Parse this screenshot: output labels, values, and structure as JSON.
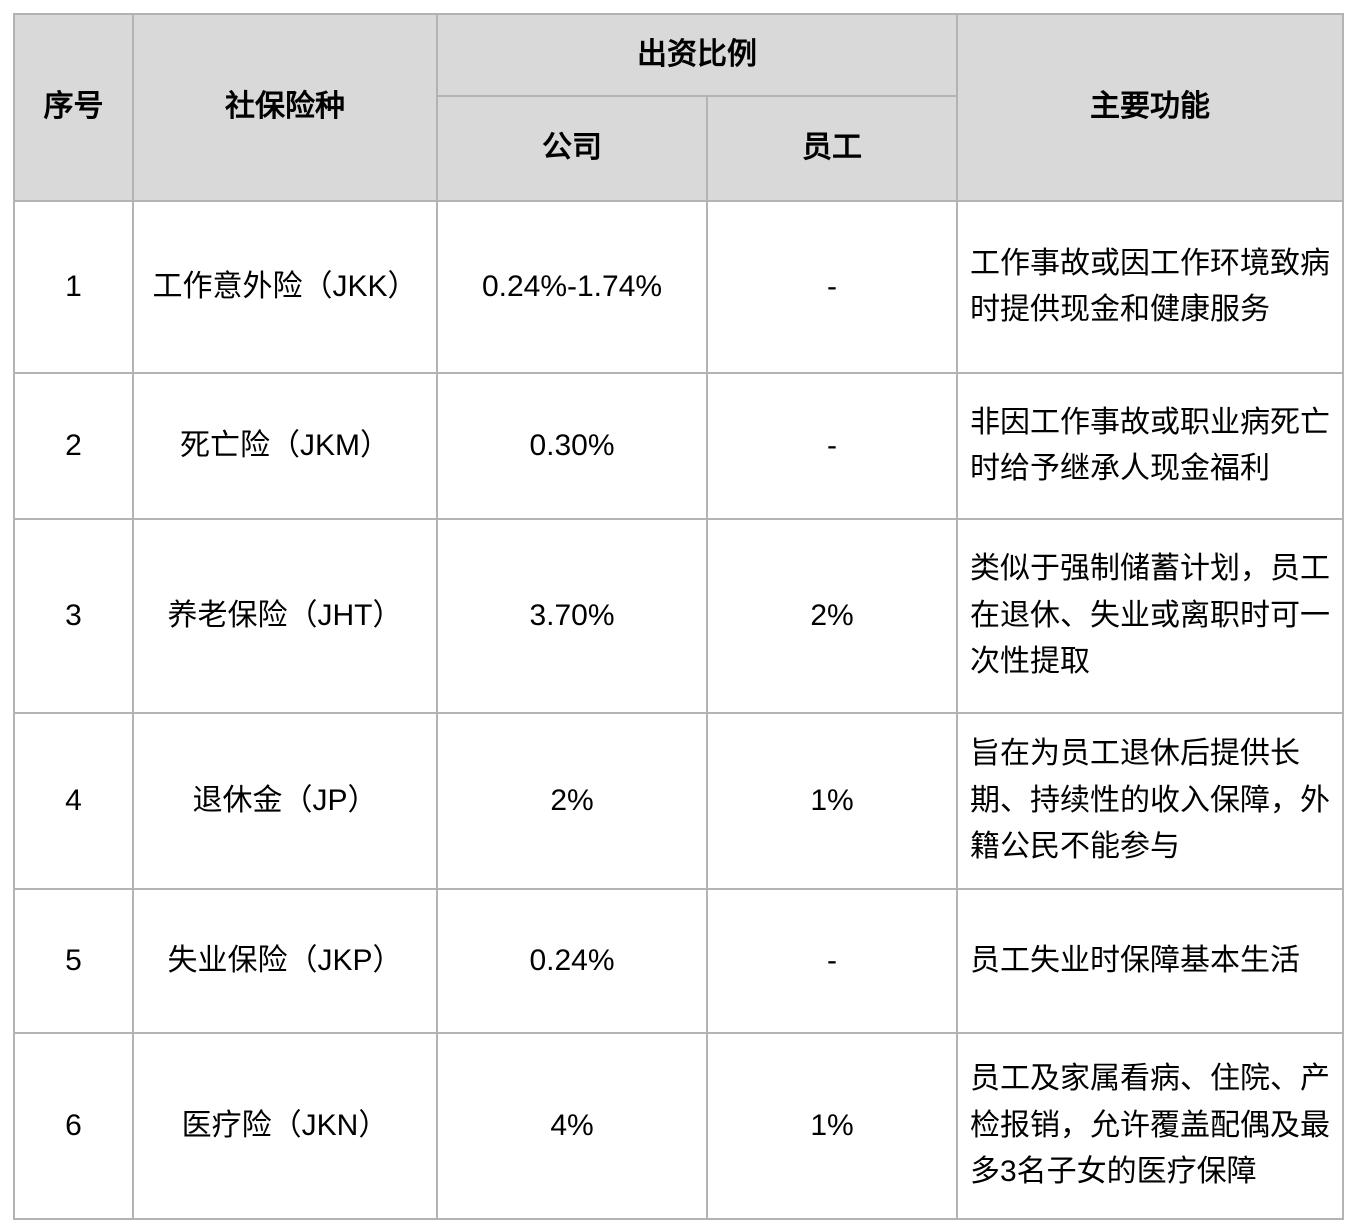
{
  "table": {
    "colors": {
      "header_bg": "#d9d9d9",
      "border": "#b3b3b3",
      "body_bg": "#ffffff",
      "text": "#000000"
    },
    "headers": {
      "no": "序号",
      "type": "社保险种",
      "contribution": "出资比例",
      "company": "公司",
      "employee": "员工",
      "function": "主要功能"
    },
    "rows": [
      {
        "no": "1",
        "type": "工作意外险（JKK）",
        "company": "0.24%-1.74%",
        "employee": "-",
        "function": "工作事故或因工作环境致病时提供现金和健康服务"
      },
      {
        "no": "2",
        "type": "死亡险（JKM）",
        "company": "0.30%",
        "employee": "-",
        "function": "非因工作事故或职业病死亡时给予继承人现金福利"
      },
      {
        "no": "3",
        "type": "养老保险（JHT）",
        "company": "3.70%",
        "employee": "2%",
        "function": "类似于强制储蓄计划，员工在退休、失业或离职时可一次性提取"
      },
      {
        "no": "4",
        "type": "退休金（JP）",
        "company": "2%",
        "employee": "1%",
        "function": "旨在为员工退休后提供长期、持续性的收入保障，外籍公民不能参与"
      },
      {
        "no": "5",
        "type": "失业保险（JKP）",
        "company": "0.24%",
        "employee": "-",
        "function": "员工失业时保障基本生活"
      },
      {
        "no": "6",
        "type": "医疗险（JKN）",
        "company": "4%",
        "employee": "1%",
        "function": "员工及家属看病、住院、产检报销，允许覆盖配偶及最多3名子女的医疗保障"
      }
    ]
  }
}
